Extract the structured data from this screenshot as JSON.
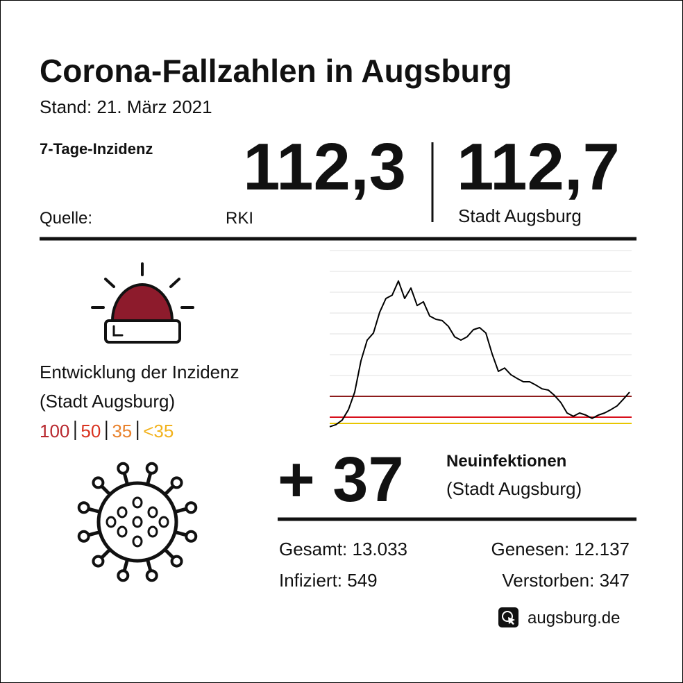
{
  "header": {
    "title": "Corona-Fallzahlen in Augsburg",
    "subtitle": "Stand: 21. März 2021"
  },
  "incidence": {
    "label": "7-Tage-Inzidenz",
    "source_label": "Quelle:",
    "values": [
      {
        "value": "112,3",
        "source": "RKI"
      },
      {
        "value": "112,7",
        "source": "Stadt Augsburg"
      }
    ]
  },
  "development": {
    "title": "Entwicklung der Inzidenz",
    "subtitle": "(Stadt Augsburg)",
    "legend": [
      {
        "label": "100",
        "color": "#b8282e"
      },
      {
        "label": "50",
        "color": "#d9321f"
      },
      {
        "label": "35",
        "color": "#e9812b"
      },
      {
        "label": "<35",
        "color": "#f2b21c"
      }
    ]
  },
  "chart_data": {
    "type": "line",
    "color": "#000000",
    "values": [
      27,
      32,
      43,
      68,
      110,
      185,
      235,
      252,
      302,
      335,
      343,
      377,
      335,
      360,
      318,
      327,
      293,
      285,
      282,
      268,
      243,
      235,
      243,
      260,
      265,
      252,
      202,
      160,
      168,
      152,
      143,
      135,
      135,
      127,
      118,
      115,
      102,
      85,
      60,
      52,
      60,
      55,
      47,
      55,
      60,
      68,
      77,
      93,
      110
    ],
    "ylim": [
      0,
      450
    ],
    "yticks": [
      150,
      200,
      250,
      300,
      350,
      400,
      450
    ],
    "grid": true,
    "thresholds": [
      {
        "value": 100,
        "color": "#8c1c1c"
      },
      {
        "value": 50,
        "color": "#d8101c"
      },
      {
        "value": 35,
        "color": "#e8c600"
      }
    ]
  },
  "new_infections": {
    "value": "+ 37",
    "label": "Neuinfektionen",
    "sublabel": "(Stadt Augsburg)"
  },
  "stats": [
    {
      "label": "Gesamt:",
      "value": "13.033"
    },
    {
      "label": "Genesen:",
      "value": "12.137"
    },
    {
      "label": "Infiziert:",
      "value": "549"
    },
    {
      "label": "Verstorben:",
      "value": "347"
    }
  ],
  "footer": {
    "website": "augsburg.de"
  }
}
